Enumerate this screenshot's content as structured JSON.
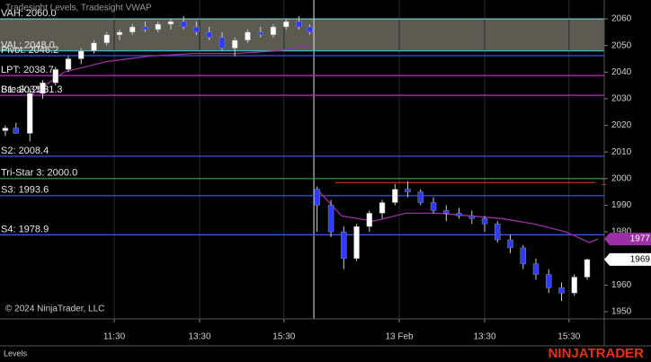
{
  "chart_data": {
    "type": "candlestick",
    "title": "Tradesight Levels, Tradesight VWAP",
    "copyright": "© 2024 NinjaTrader, LLC",
    "panel_label": "Levels",
    "brand": "NINJATRADER",
    "xlim": [
      0,
      56.6
    ],
    "ylim": [
      1947.3,
      2067.1
    ],
    "xticks": [
      {
        "value": 10.7,
        "label": "11:30"
      },
      {
        "value": 18.7,
        "label": "13:30"
      },
      {
        "value": 26.6,
        "label": "15:30"
      },
      {
        "value": 37.4,
        "label": "13 Feb"
      },
      {
        "value": 45.4,
        "label": "13:30"
      },
      {
        "value": 53.3,
        "label": "15:30"
      }
    ],
    "yticks": [
      1950,
      1960,
      1970,
      1980,
      1990,
      2000,
      2010,
      2020,
      2030,
      2040,
      2050,
      2060
    ],
    "session_break": 29.4,
    "up_color": "#ffffff",
    "down_color": "#2f3cff",
    "x": [
      0.5,
      1.5,
      2.8,
      4.0,
      5.2,
      6.4,
      7.6,
      8.8,
      10.0,
      11.2,
      12.4,
      13.6,
      14.8,
      16.0,
      17.2,
      18.4,
      19.6,
      20.8,
      22.0,
      23.2,
      24.4,
      25.6,
      26.8,
      28.0,
      29.0,
      29.7,
      31.0,
      32.2,
      33.4,
      34.6,
      35.8,
      37.0,
      38.2,
      39.4,
      40.6,
      41.8,
      43.0,
      44.2,
      45.4,
      46.6,
      47.8,
      49.0,
      50.2,
      51.4,
      52.6,
      53.8,
      55.0
    ],
    "open": [
      2018,
      2019,
      2017,
      2032,
      2036,
      2041,
      2045,
      2048,
      2051,
      2054,
      2055,
      2057,
      2056,
      2058,
      2059,
      2057,
      2055,
      2053,
      2049,
      2052,
      2055,
      2054,
      2057,
      2059,
      2057,
      1996,
      1990,
      1980,
      1970,
      1982,
      1987,
      1991,
      1996,
      1995,
      1991,
      1988,
      1987,
      1986,
      1985,
      1983,
      1977,
      1974,
      1968,
      1964,
      1959,
      1957,
      1963
    ],
    "high": [
      2020,
      2021,
      2034,
      2037,
      2042,
      2046,
      2049,
      2052,
      2055,
      2056,
      2058,
      2059,
      2059,
      2060,
      2061,
      2059,
      2057,
      2055,
      2053,
      2056,
      2057,
      2058,
      2060,
      2061,
      2058,
      1997,
      1992,
      1982,
      1983,
      1988,
      1992,
      1998,
      1999,
      1996,
      1993,
      1990,
      1989,
      1988,
      1986,
      1984,
      1979,
      1975,
      1970,
      1966,
      1961,
      1964,
      1970
    ],
    "low": [
      2016,
      2017,
      2014,
      2030,
      2035,
      2040,
      2043,
      2047,
      2050,
      2052,
      2054,
      2055,
      2055,
      2056,
      2056,
      2054,
      2052,
      2048,
      2046,
      2051,
      2053,
      2053,
      2056,
      2056,
      2054,
      1980,
      1978,
      1966,
      1969,
      1980,
      1985,
      1990,
      1993,
      1990,
      1987,
      1984,
      1985,
      1983,
      1980,
      1976,
      1972,
      1966,
      1962,
      1957,
      1954,
      1956,
      1962
    ],
    "close": [
      2019,
      2017,
      2032,
      2036,
      2041,
      2045,
      2048,
      2051,
      2054,
      2055,
      2057,
      2056,
      2058,
      2059,
      2057,
      2055,
      2053,
      2049,
      2052,
      2055,
      2054,
      2057,
      2059,
      2057,
      2055,
      1990,
      1980,
      1970,
      1982,
      1987,
      1991,
      1996,
      1995,
      1991,
      1988,
      1987,
      1986,
      1985,
      1983,
      1977,
      1974,
      1968,
      1964,
      1959,
      1957,
      1963,
      1969.6
    ],
    "vwap": {
      "color": "#9b2fa6",
      "x": [
        2.8,
        6,
        10,
        14,
        18,
        22,
        26,
        29,
        null,
        29.7,
        32,
        35,
        38,
        41,
        44,
        47,
        50,
        53,
        55.2,
        56
      ],
      "values": [
        2031,
        2040,
        2044,
        2046,
        2047,
        2047,
        2048,
        2050,
        null,
        1996,
        1986,
        1984,
        1987,
        1987,
        1986,
        1985,
        1983,
        1980,
        1976,
        1977.3
      ]
    },
    "value_area": {
      "high": 2060.0,
      "low": 2048.0,
      "color": "#6b6b60"
    },
    "levels": [
      {
        "label": "VAH: 2060.0",
        "value": 2060.0,
        "color": "#7fd3c8"
      },
      {
        "label": "VAL: 2048.0",
        "value": 2048.0,
        "color": "#3fb8c8"
      },
      {
        "label": "Pivot: 2046.2",
        "value": 2046.2,
        "color": "#3a5cff"
      },
      {
        "label": "LPT: 2038.7",
        "value": 2038.7,
        "color": "#c02fc8"
      },
      {
        "label": "S1: 2031.3",
        "value": 2031.3,
        "color": "#c02fc8"
      },
      {
        "label": "Break: 2031.3",
        "value": 2031.3,
        "color": "#c02fc8"
      },
      {
        "label": "S2: 2008.4",
        "value": 2008.4,
        "color": "#3a5cff"
      },
      {
        "label": "Tri-Star 3: 2000.0",
        "value": 2000.0,
        "color": "#2fa84a"
      },
      {
        "label": "S3: 1993.6",
        "value": 1993.6,
        "color": "#3a5cff"
      },
      {
        "label": "S4: 1978.9",
        "value": 1978.9,
        "color": "#3a5cff"
      }
    ],
    "annotations": [
      {
        "label": "1",
        "value": 1998.5,
        "x": [
          31.4,
          55.8
        ],
        "color": "#e0411f"
      }
    ]
  }
}
